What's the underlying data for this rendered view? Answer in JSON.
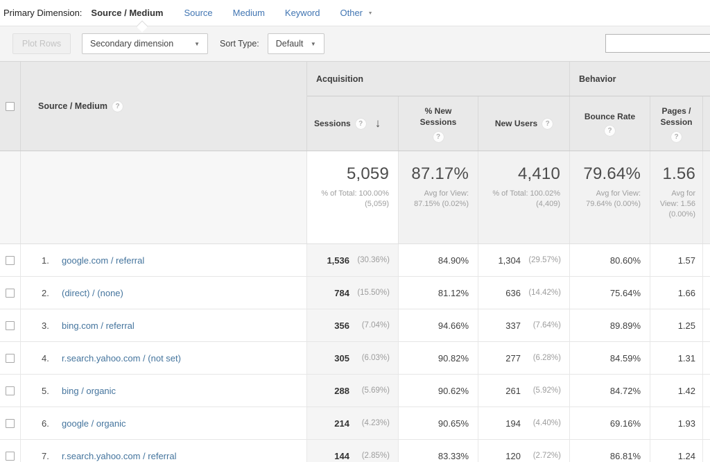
{
  "primary_dimension_bar": {
    "label": "Primary Dimension:",
    "selected_tab": "Source / Medium",
    "links": [
      "Source",
      "Medium",
      "Keyword"
    ],
    "other_label": "Other"
  },
  "toolbar": {
    "plot_rows_label": "Plot Rows",
    "secondary_dimension_label": "Secondary dimension",
    "sort_type_label": "Sort Type:",
    "sort_type_value": "Default",
    "search_value": ""
  },
  "icons": {
    "help": "?",
    "sort_descending": "↓",
    "dropdown_caret": "▼"
  },
  "colors": {
    "nav_link_blue": "#4175b2",
    "row_link_blue": "#44749d",
    "header_bg": "#e9e9e9",
    "toolbar_bg": "#f4f4f4",
    "sorted_column_bg": "#f5f5f5",
    "totals_bg": "#f2f2f2"
  },
  "table": {
    "row_dimension_header": "Source / Medium",
    "groups": {
      "acquisition": "Acquisition",
      "behavior": "Behavior"
    },
    "columns": {
      "sessions": "Sessions",
      "new_sessions": "% New Sessions",
      "new_users": "New Users",
      "bounce_rate": "Bounce Rate",
      "pages_per_session": "Pages / Session"
    },
    "totals": {
      "sessions": {
        "value": "5,059",
        "note": "% of Total: 100.00% (5,059)"
      },
      "new_sessions": {
        "value": "87.17%",
        "note": "Avg for View: 87.15% (0.02%)"
      },
      "new_users": {
        "value": "4,410",
        "note": "% of Total: 100.02% (4,409)"
      },
      "bounce_rate": {
        "value": "79.64%",
        "note": "Avg for View: 79.64% (0.00%)"
      },
      "pages_per_session": {
        "value": "1.56",
        "note": "Avg for View: 1.56 (0.00%)"
      }
    },
    "rows": [
      {
        "rank": "1.",
        "source_medium": "google.com / referral",
        "sessions": "1,536",
        "sessions_pct": "(30.36%)",
        "new_sessions": "84.90%",
        "new_users": "1,304",
        "new_users_pct": "(29.57%)",
        "bounce_rate": "80.60%",
        "pages_per_session": "1.57"
      },
      {
        "rank": "2.",
        "source_medium": "(direct) / (none)",
        "sessions": "784",
        "sessions_pct": "(15.50%)",
        "new_sessions": "81.12%",
        "new_users": "636",
        "new_users_pct": "(14.42%)",
        "bounce_rate": "75.64%",
        "pages_per_session": "1.66"
      },
      {
        "rank": "3.",
        "source_medium": "bing.com / referral",
        "sessions": "356",
        "sessions_pct": "(7.04%)",
        "new_sessions": "94.66%",
        "new_users": "337",
        "new_users_pct": "(7.64%)",
        "bounce_rate": "89.89%",
        "pages_per_session": "1.25"
      },
      {
        "rank": "4.",
        "source_medium": "r.search.yahoo.com / (not set)",
        "sessions": "305",
        "sessions_pct": "(6.03%)",
        "new_sessions": "90.82%",
        "new_users": "277",
        "new_users_pct": "(6.28%)",
        "bounce_rate": "84.59%",
        "pages_per_session": "1.31"
      },
      {
        "rank": "5.",
        "source_medium": "bing / organic",
        "sessions": "288",
        "sessions_pct": "(5.69%)",
        "new_sessions": "90.62%",
        "new_users": "261",
        "new_users_pct": "(5.92%)",
        "bounce_rate": "84.72%",
        "pages_per_session": "1.42"
      },
      {
        "rank": "6.",
        "source_medium": "google / organic",
        "sessions": "214",
        "sessions_pct": "(4.23%)",
        "new_sessions": "90.65%",
        "new_users": "194",
        "new_users_pct": "(4.40%)",
        "bounce_rate": "69.16%",
        "pages_per_session": "1.93"
      },
      {
        "rank": "7.",
        "source_medium": "r.search.yahoo.com / referral",
        "sessions": "144",
        "sessions_pct": "(2.85%)",
        "new_sessions": "83.33%",
        "new_users": "120",
        "new_users_pct": "(2.72%)",
        "bounce_rate": "86.81%",
        "pages_per_session": "1.24"
      }
    ]
  }
}
